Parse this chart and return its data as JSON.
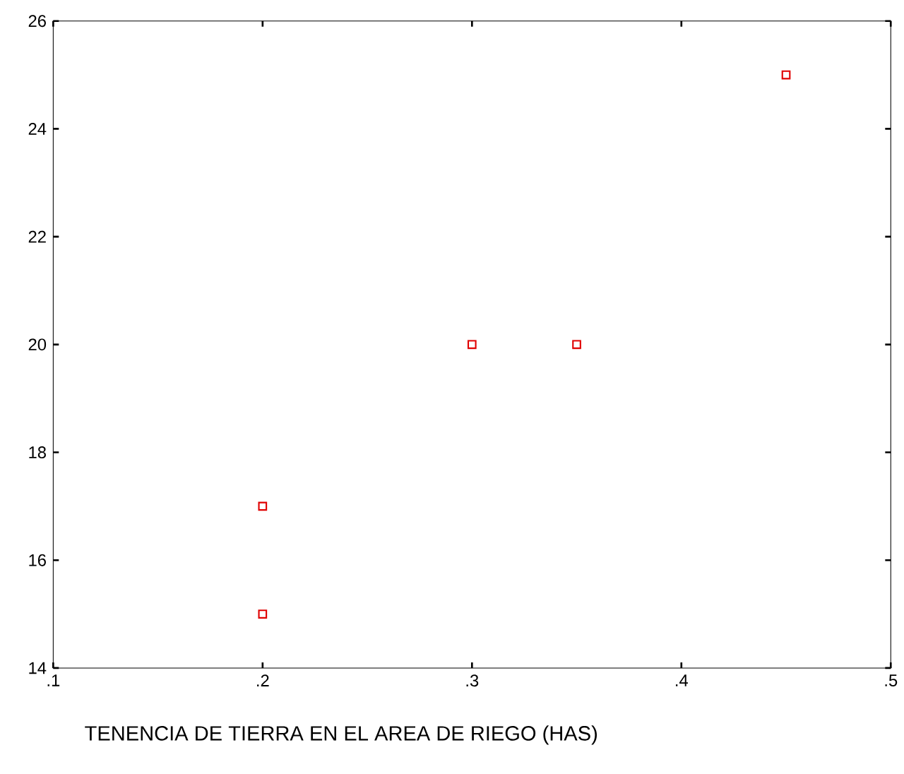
{
  "chart_data": {
    "type": "scatter",
    "xlabel": "TENENCIA DE TIERRA EN EL AREA DE RIEGO (HAS)",
    "x": [
      0.2,
      0.2,
      0.3,
      0.35,
      0.45
    ],
    "values": [
      17,
      15,
      20,
      20,
      25
    ],
    "color": "#e00000",
    "marker": "square",
    "grid": false,
    "xlim": [
      0.1,
      0.5
    ],
    "ylim": [
      14,
      26
    ],
    "xticks": [
      {
        "value": 0.1,
        "label": ".1"
      },
      {
        "value": 0.2,
        "label": ".2"
      },
      {
        "value": 0.3,
        "label": ".3"
      },
      {
        "value": 0.4,
        "label": ".4"
      },
      {
        "value": 0.5,
        "label": ".5"
      }
    ],
    "yticks": [
      14,
      16,
      18,
      20,
      22,
      24,
      26
    ]
  }
}
